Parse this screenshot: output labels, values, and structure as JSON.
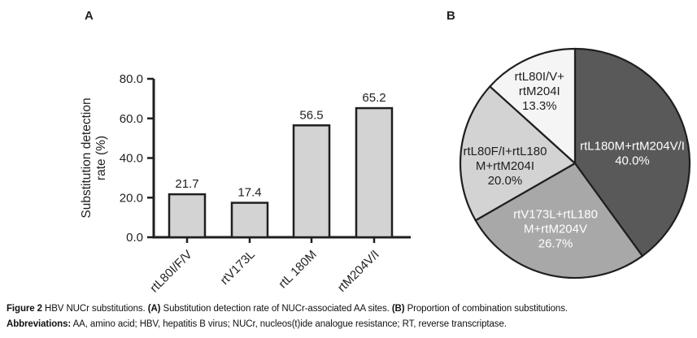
{
  "panels": {
    "a_label": "A",
    "b_label": "B"
  },
  "colors": {
    "ink": "#1f1f1f",
    "bar_fill": "#d3d3d3",
    "background": "#ffffff"
  },
  "chart_data": [
    {
      "type": "bar",
      "panel": "A",
      "categories": [
        "rtL80I/F/V",
        "rtV173L",
        "rtL 180M",
        "rtM204V/I"
      ],
      "values": [
        21.7,
        17.4,
        56.5,
        65.2
      ],
      "value_labels": [
        "21.7",
        "17.4",
        "56.5",
        "65.2"
      ],
      "ylabel": "Substitution detection rate (%)",
      "ylabel_lines": [
        "Substitution detection",
        "rate (%)"
      ],
      "ylim": [
        0,
        80
      ],
      "yticks": [
        0,
        20,
        40,
        60,
        80
      ],
      "ytick_labels": [
        "0.0",
        "20.0",
        "40.0",
        "60.0",
        "80.0"
      ],
      "grid": false,
      "bar_fill": "#d3d3d3",
      "bar_stroke": "#1f1f1f"
    },
    {
      "type": "pie",
      "panel": "B",
      "start_angle_deg": 0,
      "direction": "clockwise",
      "slices": [
        {
          "name": "rtL180M+rtM204V/I",
          "value_pct": 40.0,
          "label_lines": [
            "rtL180M+rtM204V/I",
            "40.0%"
          ],
          "color": "#595959",
          "text_color": "#ffffff"
        },
        {
          "name": "rtV173L+rtL180M+rtM204V",
          "value_pct": 26.7,
          "label_lines": [
            "rtV173L+rtL180",
            "M+rtM204V",
            "26.7%"
          ],
          "color": "#a8a8a8",
          "text_color": "#ffffff"
        },
        {
          "name": "rtL80F/I+rtL180M+rtM204I",
          "value_pct": 20.0,
          "label_lines": [
            "rtL80F/I+rtL180",
            "M+rtM204I",
            "20.0%"
          ],
          "color": "#d3d3d3",
          "text_color": "#1f1f1f"
        },
        {
          "name": "rtL80I/V+rtM204I",
          "value_pct": 13.3,
          "label_lines": [
            "rtL80I/V+",
            "rtM204I",
            "13.3%"
          ],
          "color": "#f5f5f5",
          "text_color": "#1f1f1f"
        }
      ]
    }
  ],
  "caption": {
    "line1": [
      {
        "text": "Figure 2",
        "bold": true
      },
      {
        "text": " HBV NUCr substitutions. ",
        "bold": false
      },
      {
        "text": "(A)",
        "bold": true
      },
      {
        "text": " Substitution detection rate of NUCr-associated AA sites. ",
        "bold": false
      },
      {
        "text": "(B)",
        "bold": true
      },
      {
        "text": " Proportion of combination substitutions.",
        "bold": false
      }
    ],
    "line2": [
      {
        "text": "Abbreviations:",
        "bold": true
      },
      {
        "text": " AA, amino acid; HBV, hepatitis B virus; NUCr, nucleos(t)ide analogue resistance; RT, reverse transcriptase.",
        "bold": false
      }
    ]
  }
}
